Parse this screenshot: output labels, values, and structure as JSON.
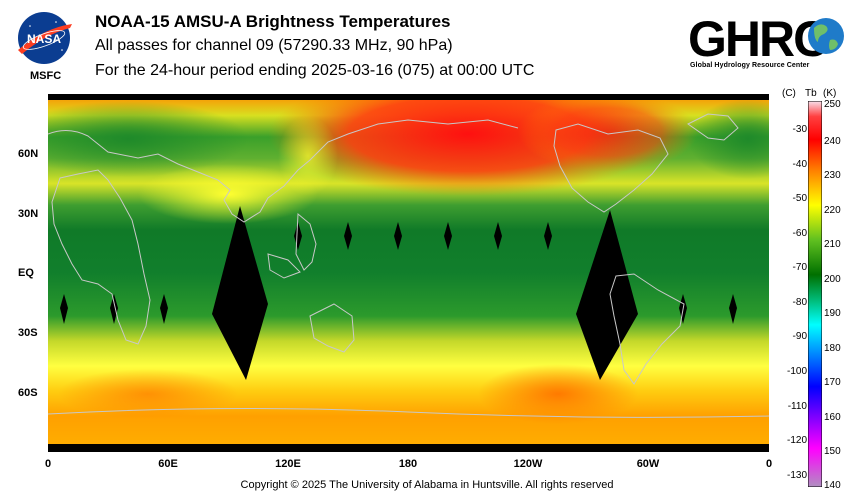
{
  "header": {
    "title": "NOAA-15 AMSU-A Brightness Temperatures",
    "subtitle1": "All passes for channel 09 (57290.33 MHz, 90 hPa)",
    "subtitle2": "For the 24-hour period ending 2025-03-16 (075) at 00:00 UTC"
  },
  "logos": {
    "nasa_text": "NASA",
    "msfc": "MSFC",
    "ghrc_text": "GHRC",
    "ghrc_full": "Global Hydrology Resource Center"
  },
  "map": {
    "lat_labels": [
      "60N",
      "30N",
      "EQ",
      "30S",
      "60S"
    ],
    "lon_labels": [
      "0",
      "60E",
      "120E",
      "180",
      "120W",
      "60W",
      "0"
    ]
  },
  "colorbar": {
    "unit_c": "(C)",
    "unit_tb": "Tb",
    "unit_k": "(K)",
    "celsius_ticks": [
      "-30",
      "-40",
      "-50",
      "-60",
      "-70",
      "-80",
      "-90",
      "-100",
      "-110",
      "-120",
      "-130"
    ],
    "kelvin_ticks": [
      "250",
      "240",
      "230",
      "220",
      "210",
      "200",
      "190",
      "180",
      "170",
      "160",
      "150",
      "140"
    ],
    "colors": [
      "#f4d4e4",
      "#ff0000",
      "#ff8000",
      "#ffff00",
      "#008000",
      "#00ffff",
      "#0000ff",
      "#ff00ff",
      "#a070a0"
    ]
  },
  "footer": {
    "copyright": "Copyright © 2025 The University of Alabama in Huntsville.  All rights reserved"
  }
}
